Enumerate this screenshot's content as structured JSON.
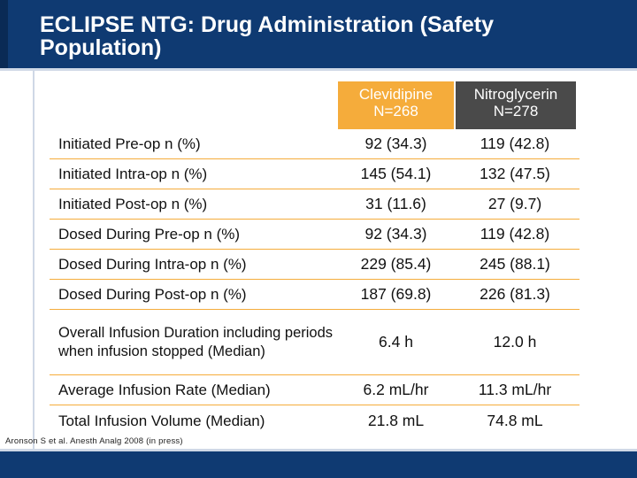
{
  "slide": {
    "title": "ECLIPSE NTG: Drug Administration (Safety Population)",
    "citation": "Aronson S et al. Anesth Analg 2008 (in press)"
  },
  "table": {
    "columns": [
      {
        "name": "Clevidipine",
        "n": "N=268",
        "color": "#f5ac3b"
      },
      {
        "name": "Nitroglycerin",
        "n": "N=278",
        "color": "#4a4a4a"
      }
    ],
    "rows": [
      {
        "label": "Initiated Pre-op  n (%)",
        "clevidipine": "92 (34.3)",
        "nitroglycerin": "119 (42.8)"
      },
      {
        "label": "Initiated Intra-op n (%)",
        "clevidipine": "145 (54.1)",
        "nitroglycerin": "132 (47.5)"
      },
      {
        "label": "Initiated Post-op n (%)",
        "clevidipine": "31 (11.6)",
        "nitroglycerin": "27 (9.7)"
      },
      {
        "label": "Dosed During Pre-op n (%)",
        "clevidipine": "92 (34.3)",
        "nitroglycerin": "119 (42.8)"
      },
      {
        "label": "Dosed During Intra-op n (%)",
        "clevidipine": "229 (85.4)",
        "nitroglycerin": "245 (88.1)"
      },
      {
        "label": "Dosed During Post-op n (%)",
        "clevidipine": "187 (69.8)",
        "nitroglycerin": "226 (81.3)"
      },
      {
        "label": "Overall Infusion Duration including periods when infusion stopped (Median)",
        "clevidipine": "6.4 h",
        "nitroglycerin": "12.0 h"
      },
      {
        "label": "Average Infusion Rate (Median)",
        "clevidipine": "6.2 mL/hr",
        "nitroglycerin": "11.3 mL/hr"
      },
      {
        "label": "Total Infusion Volume (Median)",
        "clevidipine": "21.8 mL",
        "nitroglycerin": "74.8 mL"
      }
    ]
  }
}
